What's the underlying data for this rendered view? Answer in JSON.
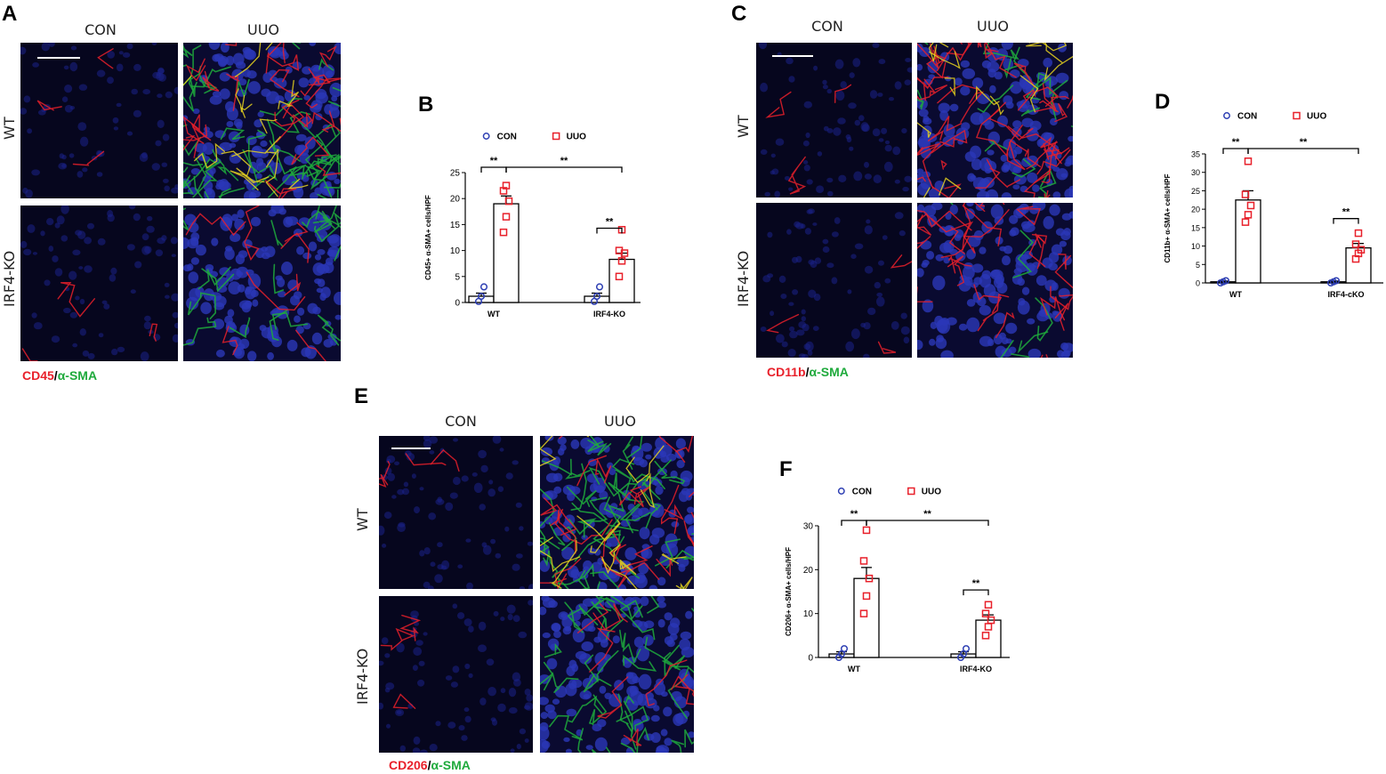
{
  "colors": {
    "con": "#2e3fb3",
    "uuo": "#e8202a",
    "alpha_sma": "#1faa3c",
    "tile_background": "#05051a",
    "nuclei": "#2a37b8"
  },
  "figures": [
    {
      "letter": "A",
      "col_labels": [
        "CON",
        "UUO"
      ],
      "row_labels": [
        "WT",
        "IRF4-KO"
      ],
      "stain_red": "CD45",
      "stain_sep": "/",
      "stain_green": "α-SMA"
    },
    {
      "letter": "C",
      "col_labels": [
        "CON",
        "UUO"
      ],
      "row_labels": [
        "WT",
        "IRF4-KO"
      ],
      "stain_red": "CD11b",
      "stain_sep": "/",
      "stain_green": "α-SMA"
    },
    {
      "letter": "E",
      "col_labels": [
        "CON",
        "UUO"
      ],
      "row_labels": [
        "WT",
        "IRF4-KO"
      ],
      "stain_red": "CD206",
      "stain_sep": "/",
      "stain_green": "α-SMA"
    }
  ],
  "chart_data": [
    {
      "letter": "B",
      "type": "bar",
      "categories": [
        "WT",
        "IRF4-KO"
      ],
      "ylabel": "CD45+ α-SMA+ cells/HPF",
      "ylim": [
        0,
        25
      ],
      "yticks": [
        0,
        5,
        10,
        15,
        20,
        25
      ],
      "legend": [
        "CON",
        "UUO"
      ],
      "series": [
        {
          "name": "CON",
          "values": [
            1.2,
            1.2
          ],
          "sem": [
            0.6,
            0.6
          ],
          "points": [
            [
              0.2,
              1.2,
              3.0
            ],
            [
              0.2,
              1.2,
              3.0
            ]
          ]
        },
        {
          "name": "UUO",
          "values": [
            19.0,
            8.3
          ],
          "sem": [
            1.5,
            1.2
          ],
          "points": [
            [
              13.5,
              16.5,
              19.5,
              21.5,
              22.5
            ],
            [
              5.0,
              8.0,
              9.5,
              10.0,
              14.0
            ]
          ]
        }
      ],
      "significance": [
        "**",
        "**",
        "**"
      ]
    },
    {
      "letter": "D",
      "type": "bar",
      "categories": [
        "WT",
        "IRF4-cKO"
      ],
      "ylabel": "CD11b+ α-SMA+ cells/HPF",
      "ylim": [
        0,
        35
      ],
      "yticks": [
        0,
        5,
        10,
        15,
        20,
        25,
        30,
        35
      ],
      "legend": [
        "CON",
        "UUO"
      ],
      "series": [
        {
          "name": "CON",
          "values": [
            0.3,
            0.3
          ],
          "sem": [
            0.2,
            0.2
          ],
          "points": [
            [
              0.0,
              0.3,
              0.6
            ],
            [
              0.0,
              0.3,
              0.6
            ]
          ]
        },
        {
          "name": "UUO",
          "values": [
            22.5,
            9.5
          ],
          "sem": [
            2.5,
            1.2
          ],
          "points": [
            [
              16.5,
              18.5,
              21.0,
              24.0,
              33.0
            ],
            [
              6.5,
              8.0,
              9.0,
              10.5,
              13.5
            ]
          ]
        }
      ],
      "significance": [
        "**",
        "**",
        "**"
      ]
    },
    {
      "letter": "F",
      "type": "bar",
      "categories": [
        "WT",
        "IRF4-KO"
      ],
      "ylabel": "CD206+ α-SMA+ cells/HPF",
      "ylim": [
        0,
        30
      ],
      "yticks": [
        0,
        10,
        20,
        30
      ],
      "legend": [
        "CON",
        "UUO"
      ],
      "series": [
        {
          "name": "CON",
          "values": [
            0.8,
            0.8
          ],
          "sem": [
            0.5,
            0.5
          ],
          "points": [
            [
              0.0,
              0.8,
              2.0
            ],
            [
              0.0,
              0.8,
              2.0
            ]
          ]
        },
        {
          "name": "UUO",
          "values": [
            18.0,
            8.5
          ],
          "sem": [
            2.5,
            1.2
          ],
          "points": [
            [
              10.0,
              14.0,
              18.0,
              22.0,
              29.0
            ],
            [
              5.0,
              7.0,
              8.5,
              10.0,
              12.0
            ]
          ]
        }
      ],
      "significance": [
        "**",
        "**",
        "**"
      ]
    }
  ]
}
